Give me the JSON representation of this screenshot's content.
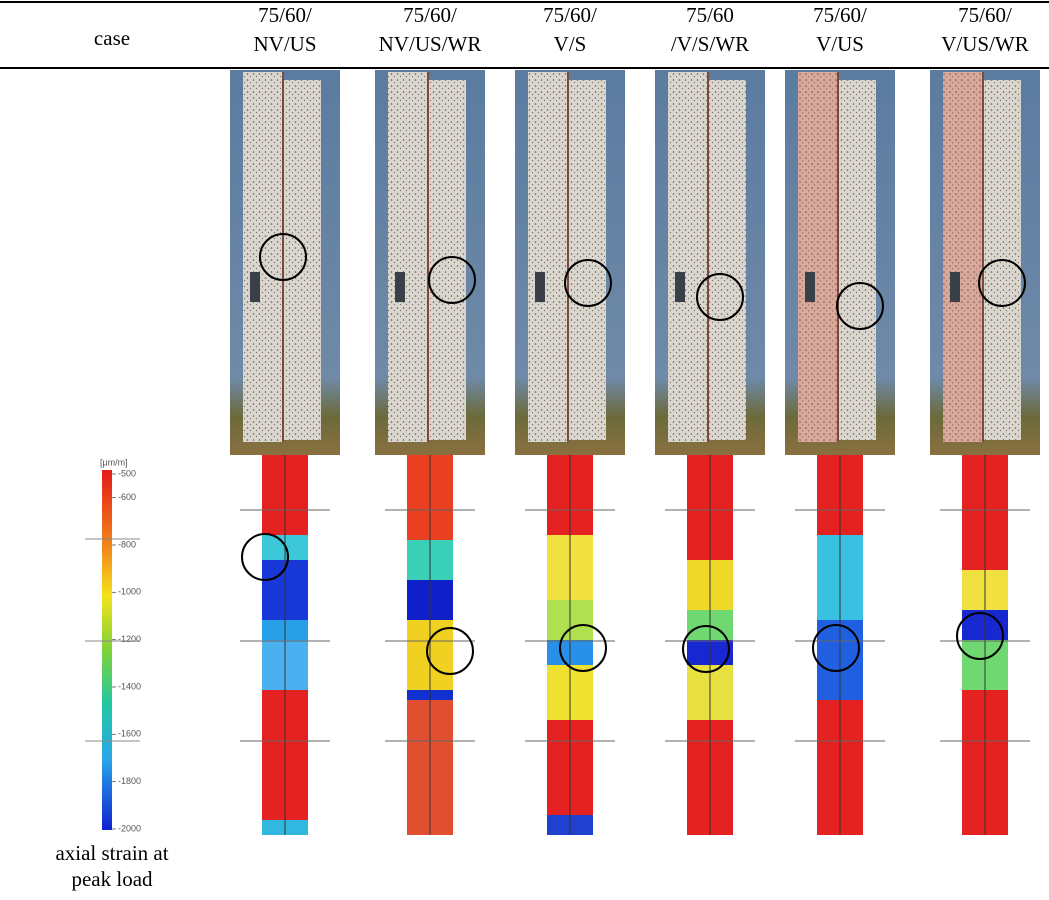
{
  "table": {
    "corner": "case",
    "columns": [
      [
        "75/60/",
        "NV/US"
      ],
      [
        "75/60/",
        "NV/US/WR"
      ],
      [
        "75/60/",
        "V/S"
      ],
      [
        "75/60",
        "/V/S/WR"
      ],
      [
        "75/60/",
        "V/US"
      ],
      [
        "75/60/",
        "V/US/WR"
      ]
    ],
    "colorbar": {
      "unit": "[μm/m]",
      "ticks": [
        -500,
        -600,
        -800,
        -1000,
        -1200,
        -1400,
        -1600,
        -1800,
        -2000
      ]
    },
    "row_label": [
      "axial strain at",
      "peak load"
    ]
  }
}
